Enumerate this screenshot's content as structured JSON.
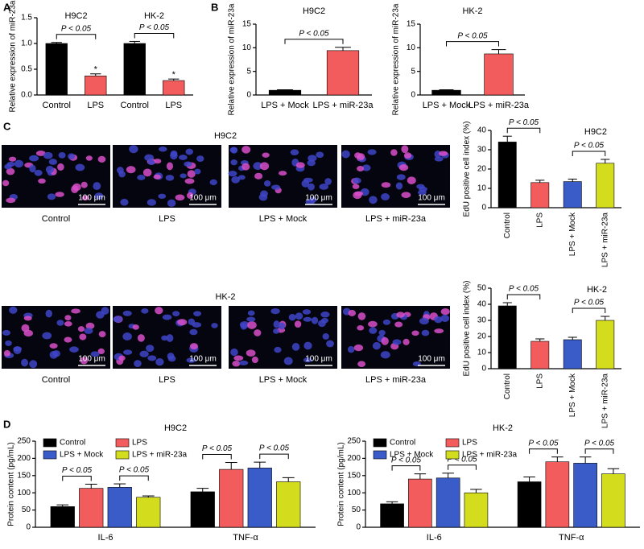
{
  "panel_labels": [
    "A",
    "B",
    "C",
    "D"
  ],
  "edu_images": [
    {
      "cell_line": "H9C2",
      "labels": [
        "Control",
        "LPS",
        "LPS + Mock",
        "LPS + miR-23a"
      ],
      "scale_bar": "100 μm"
    },
    {
      "cell_line": "HK-2",
      "labels": [
        "Control",
        "LPS",
        "LPS + Mock",
        "LPS + miR-23a"
      ],
      "scale_bar": "100 μm"
    }
  ],
  "chart_data": [
    {
      "type": "bar",
      "y_label": "Relative expression of miR-23a",
      "group_labels": [
        "H9C2",
        "HK-2"
      ],
      "categories": [
        "Control",
        "LPS",
        "Control",
        "LPS"
      ],
      "values": [
        1.0,
        0.37,
        1.0,
        0.28
      ],
      "errors": [
        0.02,
        0.04,
        0.04,
        0.03
      ],
      "colors": [
        "#000000",
        "#f25c5c",
        "#000000",
        "#f25c5c"
      ],
      "annotations": [
        "P < 0.05",
        "P < 0.05"
      ],
      "markers": [
        "*",
        "*"
      ],
      "ylim": [
        0,
        1.5
      ],
      "yticks": [
        {
          "value": 0,
          "label": "0.0"
        },
        {
          "value": 0.5,
          "label": "0.5"
        },
        {
          "value": 1.0,
          "label": "1.0"
        },
        {
          "value": 1.5,
          "label": "1.5"
        }
      ]
    },
    {
      "type": "bar",
      "title": "H9C2",
      "y_label": "Relative expression of miR-23a",
      "categories": [
        "LPS + Mock",
        "LPS + miR-23a"
      ],
      "values": [
        1.0,
        9.4
      ],
      "errors": [
        0.1,
        0.7
      ],
      "colors": [
        "#000000",
        "#f25c5c"
      ],
      "annotations": [
        "P < 0.05"
      ],
      "ylim": [
        0,
        15
      ],
      "yticks": [
        0,
        5,
        10,
        15
      ]
    },
    {
      "type": "bar",
      "title": "HK-2",
      "y_label": "Relative expression of miR-23a",
      "categories": [
        "LPS + Mock",
        "LPS + miR-23a"
      ],
      "values": [
        1.0,
        8.7
      ],
      "errors": [
        0.1,
        0.9
      ],
      "colors": [
        "#000000",
        "#f25c5c"
      ],
      "annotations": [
        "P < 0.05"
      ],
      "ylim": [
        0,
        15
      ],
      "yticks": [
        0,
        5,
        10,
        15
      ]
    },
    {
      "type": "bar",
      "title": "H9C2",
      "y_label": "EdU positive cell index (%)",
      "categories": [
        "Control",
        "LPS",
        "LPS + Mock",
        "LPS + miR-23a"
      ],
      "values": [
        34,
        13,
        13.5,
        23
      ],
      "errors": [
        3,
        1.2,
        1.3,
        2
      ],
      "colors": [
        "#000000",
        "#f25c5c",
        "#3a5cc8",
        "#d4dc1e"
      ],
      "annotations": [
        "P < 0.05",
        "P < 0.05"
      ],
      "ylim": [
        0,
        40
      ],
      "yticks": [
        0,
        10,
        20,
        30,
        40
      ]
    },
    {
      "type": "bar",
      "title": "HK-2",
      "y_label": "EdU positive cell index (%)",
      "categories": [
        "Control",
        "LPS",
        "LPS + Mock",
        "LPS + miR-23a"
      ],
      "values": [
        39,
        17,
        18,
        30
      ],
      "errors": [
        2,
        1.5,
        1.5,
        2.5
      ],
      "colors": [
        "#000000",
        "#f25c5c",
        "#3a5cc8",
        "#d4dc1e"
      ],
      "annotations": [
        "P < 0.05",
        "P < 0.05"
      ],
      "ylim": [
        0,
        50
      ],
      "yticks": [
        0,
        10,
        20,
        30,
        40,
        50
      ]
    },
    {
      "type": "bar",
      "title": "H9C2",
      "y_label": "Protein content (pg/mL)",
      "categories": [
        "IL-6",
        "TNF-α"
      ],
      "series": [
        {
          "name": "Control",
          "color": "#000000",
          "values": [
            60,
            103
          ],
          "errors": [
            5,
            10
          ]
        },
        {
          "name": "LPS",
          "color": "#f25c5c",
          "values": [
            113,
            168
          ],
          "errors": [
            12,
            20
          ]
        },
        {
          "name": "LPS + Mock",
          "color": "#3a5cc8",
          "values": [
            116,
            172
          ],
          "errors": [
            10,
            17
          ]
        },
        {
          "name": "LPS + miR-23a",
          "color": "#d4dc1e",
          "values": [
            87,
            132
          ],
          "errors": [
            4,
            12
          ]
        }
      ],
      "annotations": [
        "P < 0.05",
        "P < 0.05",
        "P < 0.05",
        "P < 0.05"
      ],
      "ylim": [
        0,
        250
      ],
      "yticks": [
        0,
        50,
        100,
        150,
        200,
        250
      ]
    },
    {
      "type": "bar",
      "title": "HK-2",
      "y_label": "Protein content (pg/mL)",
      "categories": [
        "IL-6",
        "TNF-α"
      ],
      "series": [
        {
          "name": "Control",
          "color": "#000000",
          "values": [
            68,
            132
          ],
          "errors": [
            6,
            14
          ]
        },
        {
          "name": "LPS",
          "color": "#f25c5c",
          "values": [
            140,
            190
          ],
          "errors": [
            15,
            14
          ]
        },
        {
          "name": "LPS + Mock",
          "color": "#3a5cc8",
          "values": [
            143,
            186
          ],
          "errors": [
            14,
            18
          ]
        },
        {
          "name": "LPS + miR-23a",
          "color": "#d4dc1e",
          "values": [
            100,
            155
          ],
          "errors": [
            10,
            15
          ]
        }
      ],
      "annotations": [
        "P < 0.05",
        "P < 0.05",
        "P < 0.05",
        "P < 0.05"
      ],
      "ylim": [
        0,
        250
      ],
      "yticks": [
        0,
        50,
        100,
        150,
        200,
        250
      ]
    }
  ]
}
